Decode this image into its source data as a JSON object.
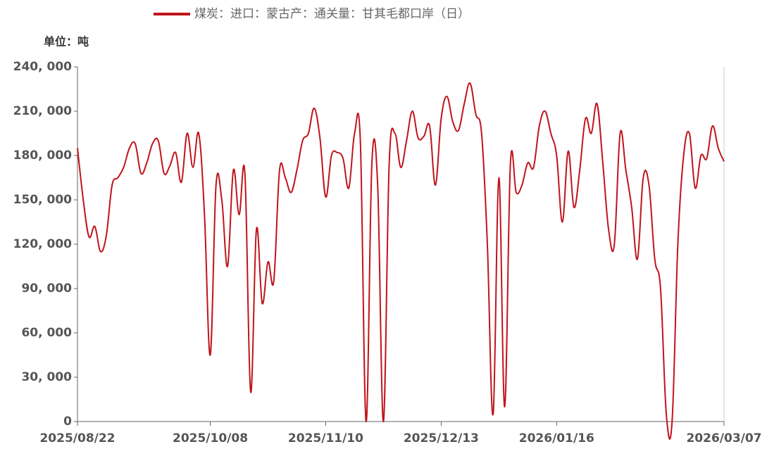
{
  "chart_data": {
    "type": "line",
    "legend_text": "煤炭：进口：蒙古产：通关量：甘其毛都口岸（日）",
    "unit_label": "单位：吨",
    "categories": [
      "2025/08/22",
      null,
      null,
      null,
      null,
      null,
      null,
      null,
      null,
      null,
      null,
      null,
      null,
      null,
      null,
      null,
      null,
      null,
      null,
      null,
      null,
      null,
      null,
      "2025/10/08",
      null,
      null,
      null,
      null,
      null,
      null,
      null,
      null,
      null,
      null,
      null,
      null,
      null,
      null,
      null,
      null,
      null,
      null,
      null,
      "2025/11/10",
      null,
      null,
      null,
      null,
      null,
      null,
      null,
      null,
      null,
      null,
      null,
      null,
      null,
      null,
      null,
      null,
      null,
      null,
      null,
      "2025/12/13",
      null,
      null,
      null,
      null,
      null,
      null,
      null,
      null,
      null,
      null,
      null,
      null,
      null,
      null,
      null,
      null,
      null,
      null,
      null,
      "2026/01/16",
      null,
      null,
      null,
      null,
      null,
      null,
      null,
      null,
      null,
      null,
      null,
      null,
      null,
      null,
      null,
      null,
      null,
      null,
      null,
      null,
      null,
      null,
      null,
      null,
      null,
      null,
      null,
      null,
      "2026/03/07"
    ],
    "series": [
      {
        "name": "煤炭：进口：蒙古产：通关量：甘其毛都口岸（日）",
        "color": "#c0141c",
        "values": [
          185000,
          150000,
          125000,
          132000,
          115000,
          126000,
          160000,
          165000,
          172000,
          185000,
          188000,
          168000,
          175000,
          188000,
          190000,
          168000,
          173000,
          182000,
          162000,
          195000,
          172000,
          195000,
          140000,
          45000,
          160000,
          150000,
          105000,
          170000,
          140000,
          168000,
          20000,
          130000,
          80000,
          108000,
          95000,
          170000,
          165000,
          155000,
          170000,
          190000,
          195000,
          212000,
          192000,
          152000,
          180000,
          182000,
          178000,
          158000,
          195000,
          190000,
          0,
          175000,
          160000,
          0,
          175000,
          195000,
          172000,
          190000,
          210000,
          192000,
          193000,
          200000,
          160000,
          205000,
          220000,
          203000,
          197000,
          215000,
          229000,
          208000,
          195000,
          120000,
          5000,
          165000,
          10000,
          175000,
          155000,
          160000,
          175000,
          172000,
          200000,
          210000,
          195000,
          180000,
          135000,
          183000,
          145000,
          170000,
          205000,
          195000,
          215000,
          175000,
          130000,
          120000,
          195000,
          170000,
          145000,
          110000,
          165000,
          160000,
          110000,
          90000,
          5000,
          0,
          120000,
          180000,
          195000,
          158000,
          180000,
          178000,
          200000,
          185000,
          176000
        ]
      }
    ],
    "ylim": [
      0,
      240000
    ],
    "yticks": [
      0,
      {
        "value": 30000,
        "label": "30, 000"
      },
      {
        "value": 60000,
        "label": "60, 000"
      },
      {
        "value": 90000,
        "label": "90, 000"
      },
      {
        "value": 120000,
        "label": "120, 000"
      },
      {
        "value": 150000,
        "label": "150, 000"
      },
      {
        "value": 180000,
        "label": "180, 000"
      },
      {
        "value": 210000,
        "label": "210, 000"
      },
      {
        "value": 240000,
        "label": "240, 000"
      }
    ],
    "grid": false
  }
}
